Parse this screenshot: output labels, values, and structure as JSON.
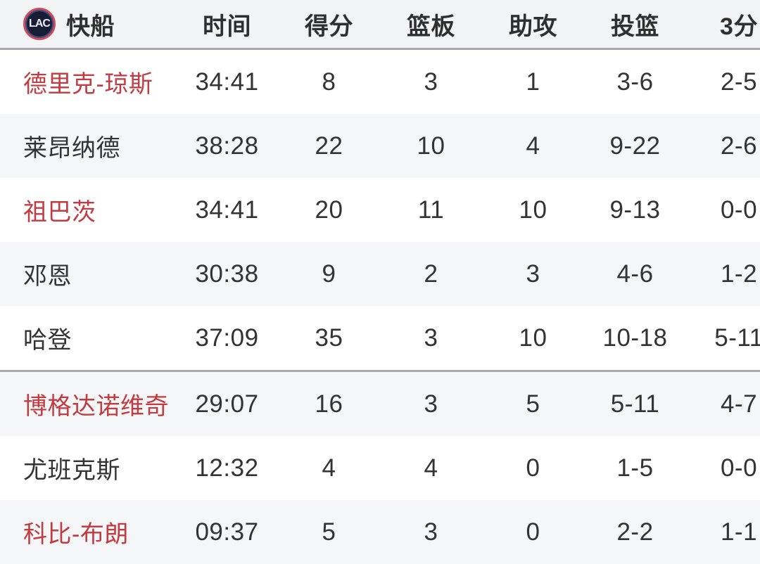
{
  "table": {
    "team": {
      "name": "快船",
      "logo_text": "LAC"
    },
    "columns": {
      "time": "时间",
      "points": "得分",
      "rebounds": "篮板",
      "assists": "助攻",
      "fg": "投篮",
      "three": "3分"
    },
    "rows": [
      {
        "name": "德里克-琼斯",
        "highlight": true,
        "time": "34:41",
        "pts": "8",
        "reb": "3",
        "ast": "1",
        "fg": "3-6",
        "tp": "2-5"
      },
      {
        "name": "莱昂纳德",
        "highlight": false,
        "time": "38:28",
        "pts": "22",
        "reb": "10",
        "ast": "4",
        "fg": "9-22",
        "tp": "2-6"
      },
      {
        "name": "祖巴茨",
        "highlight": true,
        "time": "34:41",
        "pts": "20",
        "reb": "11",
        "ast": "10",
        "fg": "9-13",
        "tp": "0-0"
      },
      {
        "name": "邓恩",
        "highlight": false,
        "time": "30:38",
        "pts": "9",
        "reb": "2",
        "ast": "3",
        "fg": "4-6",
        "tp": "1-2"
      },
      {
        "name": "哈登",
        "highlight": false,
        "time": "37:09",
        "pts": "35",
        "reb": "3",
        "ast": "10",
        "fg": "10-18",
        "tp": "5-11"
      },
      {
        "name": "博格达诺维奇",
        "highlight": true,
        "time": "29:07",
        "pts": "16",
        "reb": "3",
        "ast": "5",
        "fg": "5-11",
        "tp": "4-7"
      },
      {
        "name": "尤班克斯",
        "highlight": false,
        "time": "12:32",
        "pts": "4",
        "reb": "4",
        "ast": "0",
        "fg": "1-5",
        "tp": "0-0"
      },
      {
        "name": "科比-布朗",
        "highlight": true,
        "time": "09:37",
        "pts": "5",
        "reb": "3",
        "ast": "0",
        "fg": "2-2",
        "tp": "1-1"
      }
    ],
    "colors": {
      "highlight_name": "#c13b40",
      "text": "#333333",
      "header_bg": "#f2f3f4",
      "row_alt_bg": "#f5f6f7",
      "divider": "#a9a9a9",
      "logo_bg": "#181d36",
      "logo_ring": "#cf4b5c"
    }
  }
}
